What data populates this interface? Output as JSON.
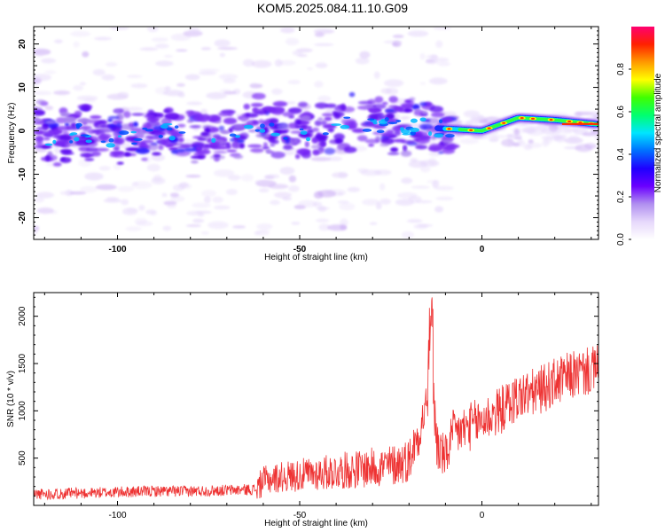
{
  "title": "KOM5.2025.084.11.10.G09",
  "chart_data": [
    {
      "type": "heatmap",
      "xlabel": "Height of straight line (km)",
      "ylabel": "Frequency (Hz)",
      "xlim": [
        -123,
        32
      ],
      "ylim": [
        -25,
        24
      ],
      "xticks": [
        -100,
        -50,
        0
      ],
      "yticks": [
        -20,
        -10,
        0,
        10,
        20
      ],
      "colorbar": {
        "label": "Normalized spectral amplitude",
        "range": [
          0,
          1
        ],
        "ticks": [
          0.0,
          0.2,
          0.4,
          0.6,
          0.8
        ],
        "colors": [
          "#ffffff",
          "#e6d8fb",
          "#b08ef0",
          "#6a00ff",
          "#1f00ff",
          "#0070ff",
          "#00e5ff",
          "#00ff70",
          "#40ff00",
          "#ffff00",
          "#ff9900",
          "#ff2000",
          "#ff0070"
        ]
      },
      "ridge": {
        "description_points": [
          {
            "x": -120,
            "f": -2.5
          },
          {
            "x": -110,
            "f": -0.5
          },
          {
            "x": -100,
            "f": -2
          },
          {
            "x": -90,
            "f": 0
          },
          {
            "x": -80,
            "f": -1
          },
          {
            "x": -70,
            "f": -1
          },
          {
            "x": -60,
            "f": 2
          },
          {
            "x": -50,
            "f": -1
          },
          {
            "x": -40,
            "f": 2
          },
          {
            "x": -30,
            "f": 2
          },
          {
            "x": -20,
            "f": 1
          },
          {
            "x": -10,
            "f": 0.5
          },
          {
            "x": 0,
            "f": 0
          },
          {
            "x": 10,
            "f": 3
          },
          {
            "x": 20,
            "f": 2.5
          },
          {
            "x": 32,
            "f": 1.5
          }
        ]
      }
    },
    {
      "type": "line",
      "xlabel": "Height of straight line (km)",
      "ylabel": "SNR (10 * v/v)",
      "xlim": [
        -123,
        32
      ],
      "ylim": [
        0,
        2250
      ],
      "xticks": [
        -100,
        -50,
        0
      ],
      "yticks": [
        500,
        1000,
        1500,
        2000
      ],
      "line_color": "#ee3333",
      "series": [
        {
          "x": [
            -123,
            -110,
            -100,
            -90,
            -80,
            -70,
            -62,
            -60,
            -55,
            -50,
            -45,
            -40,
            -35,
            -30,
            -25,
            -20,
            -17,
            -15,
            -14,
            -13,
            -12,
            -10,
            -8,
            -5,
            0,
            5,
            10,
            15,
            20,
            25,
            30,
            32
          ],
          "values": [
            120,
            130,
            140,
            150,
            150,
            160,
            170,
            260,
            300,
            320,
            340,
            360,
            380,
            400,
            420,
            480,
            800,
            1100,
            2200,
            900,
            600,
            500,
            750,
            800,
            900,
            1000,
            1150,
            1200,
            1300,
            1380,
            1420,
            1450
          ]
        }
      ],
      "annotations": {
        "peak_x": -13.5,
        "peak_y": 2250
      }
    }
  ]
}
